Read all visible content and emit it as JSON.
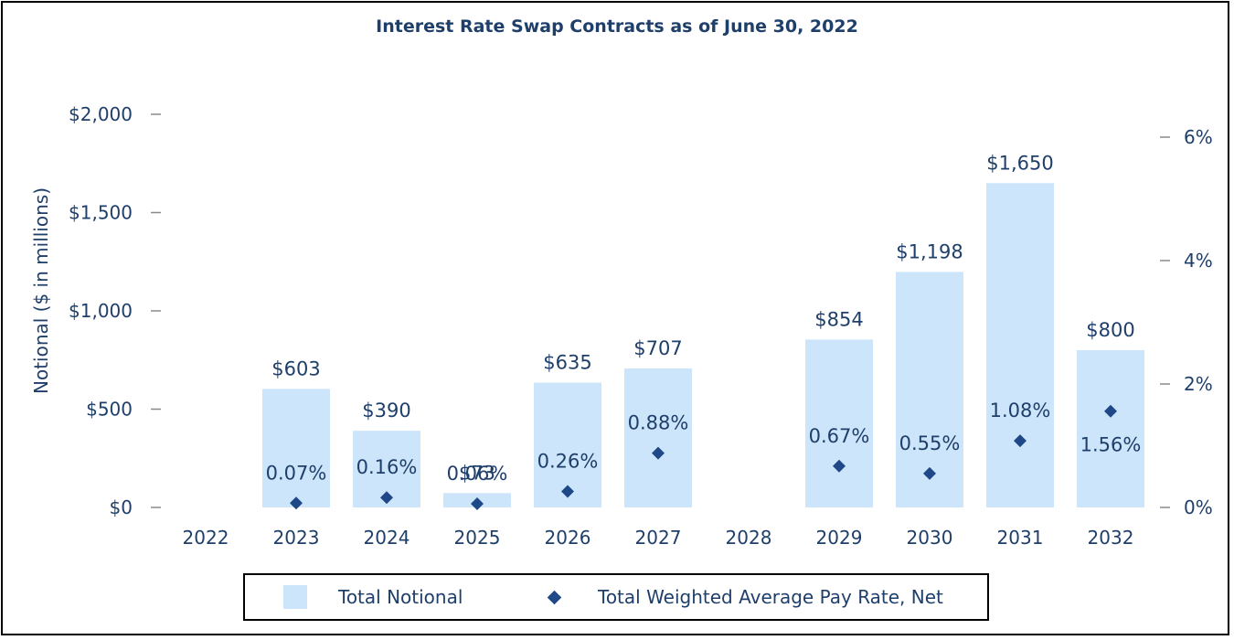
{
  "title": "Interest Rate Swap Contracts as of June 30, 2022",
  "legend": {
    "bar_label": "Total Notional",
    "marker_label": "Total Weighted Average Pay Rate, Net"
  },
  "colors": {
    "bar": "#cce5fb",
    "marker": "#1f4888",
    "text": "#1f3f6b",
    "tick": "#8a8a8a"
  },
  "chart_data": {
    "type": "bar",
    "title": "Interest Rate Swap Contracts as of June 30, 2022",
    "categories": [
      "2022",
      "2023",
      "2024",
      "2025",
      "2026",
      "2027",
      "2028",
      "2029",
      "2030",
      "2031",
      "2032"
    ],
    "ylabel": "Notional ($ in millions)",
    "ylim": [
      0,
      2000
    ],
    "y_ticks": [
      "$0",
      "$500",
      "$1,000",
      "$1,500",
      "$2,000"
    ],
    "y2lim": [
      0,
      6
    ],
    "y2_ticks": [
      "0%",
      "2%",
      "4%",
      "6%"
    ],
    "grid": false,
    "legend_position": "bottom",
    "series": [
      {
        "name": "Total Notional",
        "type": "bar",
        "axis": "left",
        "values": [
          null,
          603,
          390,
          73,
          635,
          707,
          null,
          854,
          1198,
          1650,
          800
        ],
        "labels": [
          "",
          "$603",
          "$390",
          "$73",
          "$635",
          "$707",
          "",
          "$854",
          "$1,198",
          "$1,650",
          "$800"
        ]
      },
      {
        "name": "Total Weighted Average Pay Rate, Net",
        "type": "scatter",
        "marker": "diamond",
        "axis": "right",
        "values": [
          null,
          0.07,
          0.16,
          0.06,
          0.26,
          0.88,
          null,
          0.67,
          0.55,
          1.08,
          1.56
        ],
        "labels": [
          "",
          "0.07%",
          "0.16%",
          "0.06%",
          "0.26%",
          "0.88%",
          "",
          "0.67%",
          "0.55%",
          "1.08%",
          "1.56%"
        ]
      }
    ]
  }
}
